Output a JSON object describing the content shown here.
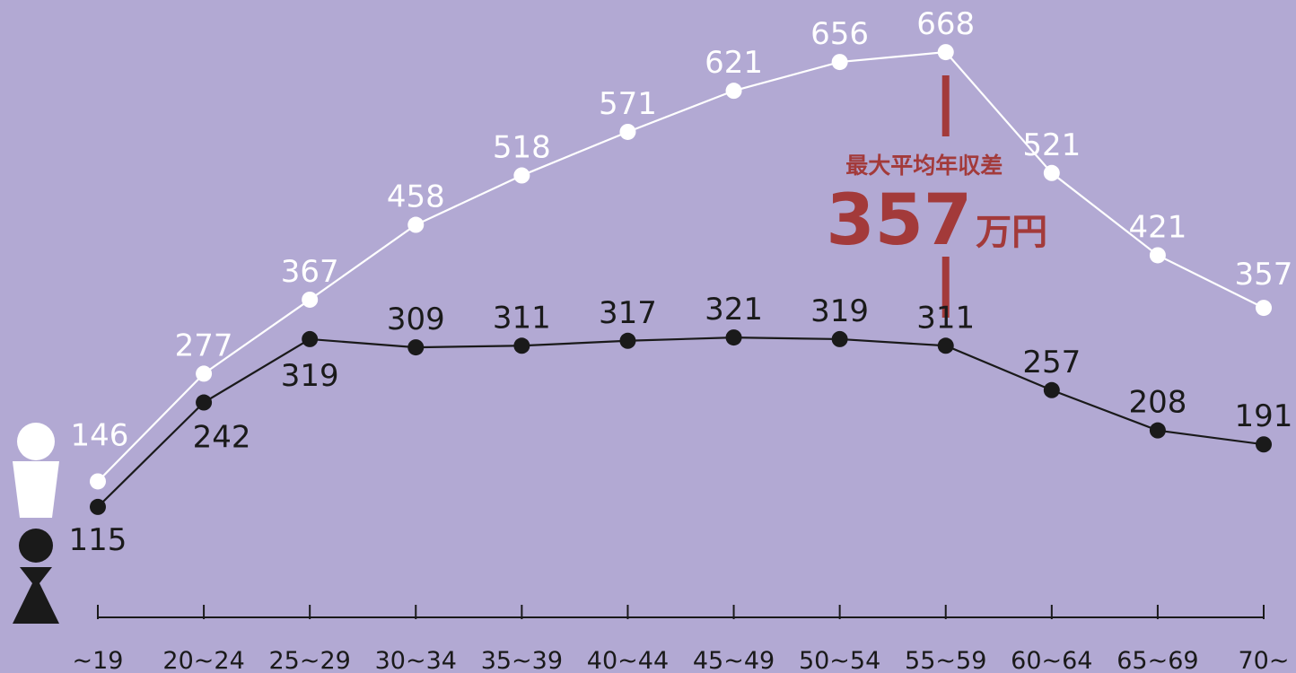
{
  "chart_data": {
    "type": "line",
    "categories": [
      "~19",
      "20~24",
      "25~29",
      "30~34",
      "35~39",
      "40~44",
      "45~49",
      "50~54",
      "55~59",
      "60~64",
      "65~69",
      "70~"
    ],
    "series": [
      {
        "name": "",
        "marker": "white",
        "color": "#ffffff",
        "values": [
          146,
          277,
          367,
          458,
          518,
          571,
          621,
          656,
          668,
          521,
          421,
          357
        ]
      },
      {
        "name": "",
        "marker": "black",
        "color": "#1a1a1a",
        "values": [
          115,
          242,
          319,
          309,
          311,
          317,
          321,
          319,
          311,
          257,
          208,
          191
        ]
      }
    ],
    "legend": [
      {
        "symbol": "male-icon",
        "color": "#ffffff",
        "series_index": 0
      },
      {
        "symbol": "female-icon",
        "color": "#1a1a1a",
        "series_index": 1
      }
    ],
    "annotation": {
      "category": "55~59",
      "title": "最大平均年収差",
      "value": "357",
      "unit": "万円",
      "color": "#a33a3a"
    },
    "ylim": [
      0,
      700
    ],
    "grid": false,
    "label_texts": {
      "white": [
        "146",
        "277",
        "367",
        "458",
        "518",
        "571",
        "621",
        "656",
        "668",
        "521",
        "421",
        "357"
      ],
      "black": [
        "115",
        "242",
        "319",
        "309",
        "311",
        "317",
        "321",
        "319",
        "311",
        "257",
        "208",
        "191"
      ]
    }
  }
}
